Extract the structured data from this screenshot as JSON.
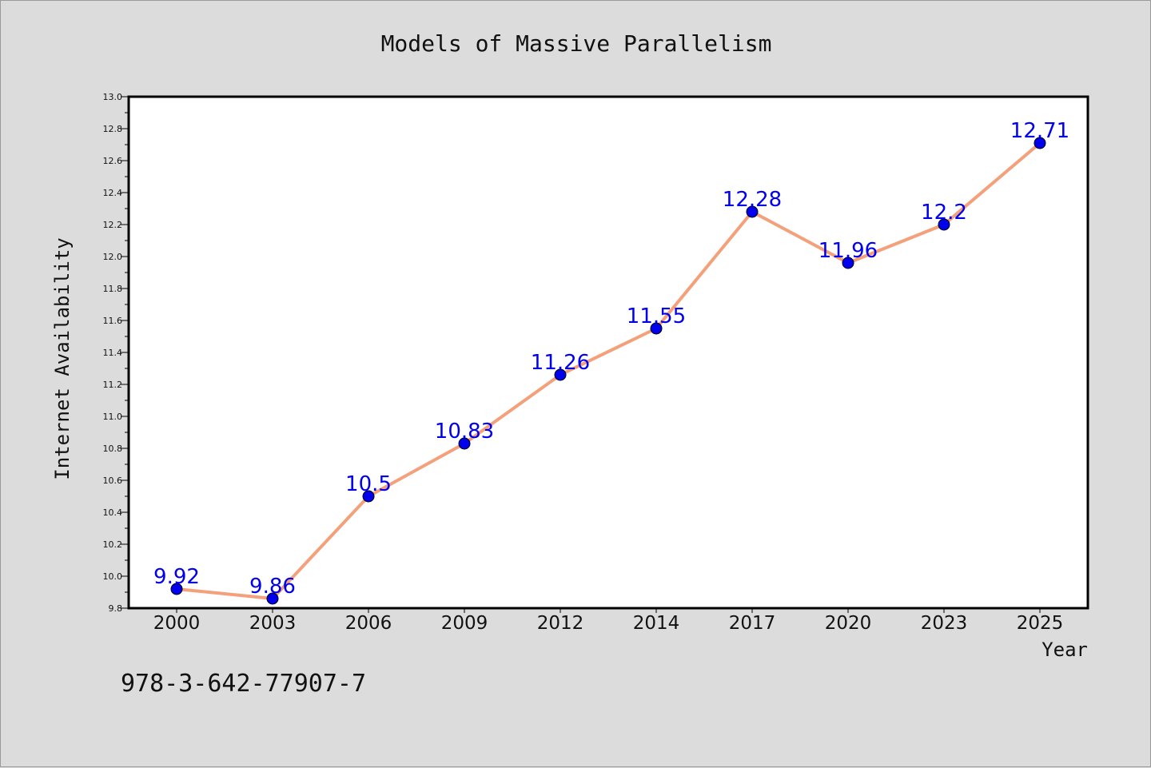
{
  "chart_data": {
    "type": "line",
    "title": "Models of Massive Parallelism",
    "xlabel": "Year",
    "ylabel": "Internet Availability",
    "categories": [
      "2000",
      "2003",
      "2006",
      "2009",
      "2012",
      "2014",
      "2017",
      "2020",
      "2023",
      "2025"
    ],
    "series": [
      {
        "values": [
          9.92,
          9.86,
          10.5,
          10.83,
          11.26,
          11.55,
          12.28,
          11.96,
          12.2,
          12.71
        ],
        "labels": [
          "9.92",
          "9.86",
          "10.5",
          "10.83",
          "11.26",
          "11.55",
          "12.28",
          "11.96",
          "12.2",
          "12.71"
        ],
        "line_color": "#f4a07a",
        "marker_color": "#0000ee"
      }
    ],
    "ylim": [
      9.8,
      13.0
    ],
    "yticks": [
      "9.8",
      "10.0",
      "10.2",
      "10.4",
      "10.6",
      "10.8",
      "11.0",
      "11.2",
      "11.4",
      "11.6",
      "11.8",
      "12.0",
      "12.2",
      "12.4",
      "12.6",
      "12.8",
      "13.0"
    ],
    "grid": false,
    "legend": "none"
  },
  "footnote": "978-3-642-77907-7"
}
